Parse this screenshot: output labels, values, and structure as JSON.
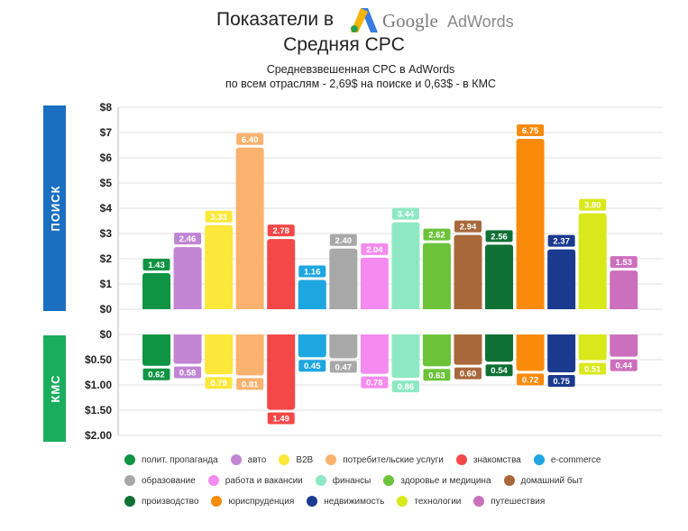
{
  "header": {
    "title_prefix": "Показатели в",
    "google": "Google",
    "adwords": "AdWords",
    "subtitle": "Средняя CPC",
    "desc_line1": "Средневзвешенная CPC в AdWords",
    "desc_line2": "по всем отраслям - 2,69$ на поиске и 0,63$ - в КМС"
  },
  "chart_data": {
    "type": "bar",
    "panels": {
      "search_label": "ПОИСК",
      "display_label": "КМС",
      "search_color": "#1a6fc0",
      "display_color": "#1bad5e"
    },
    "y_ticks_search": [
      "$8",
      "$7",
      "$6",
      "$5",
      "$4",
      "$3",
      "$2",
      "$1",
      "$0"
    ],
    "y_ticks_display": [
      "$0",
      "$0.50",
      "$1.00",
      "$1.50",
      "$2.00"
    ],
    "ylim_search": [
      0,
      8
    ],
    "ylim_display": [
      0,
      2
    ],
    "grid": true,
    "categories": [
      "полит. пропаганда",
      "авто",
      "B2B",
      "потребительские услуги",
      "знакомства",
      "e-commerce",
      "образование",
      "работа и вакансии",
      "финансы",
      "здоровье и медицина",
      "домашний быт",
      "производство",
      "юриспруденция",
      "недвижимость",
      "технологии",
      "путешествия"
    ],
    "colors": [
      "#0f9444",
      "#c185d4",
      "#fbe83a",
      "#fbb26e",
      "#f44747",
      "#1da6df",
      "#a8a8a8",
      "#f58af0",
      "#8fe8c4",
      "#6cc33a",
      "#a8683a",
      "#0f7035",
      "#f98a0a",
      "#1a3a8f",
      "#d8e81b",
      "#cc6fbd"
    ],
    "series": [
      {
        "values": [
          1.43,
          2.46,
          3.33,
          6.4,
          2.78,
          1.16,
          2.4,
          2.04,
          3.44,
          2.62,
          2.94,
          2.56,
          6.75,
          2.37,
          3.8,
          1.53
        ],
        "labels": [
          "1.43",
          "2.46",
          "3.33",
          "6.40",
          "2.78",
          "1.16",
          "2.40",
          "2.04",
          "3.44",
          "2.62",
          "2.94",
          "2.56",
          "6.75",
          "2.37",
          "3.80",
          "1.53"
        ]
      },
      {
        "values": [
          0.62,
          0.58,
          0.79,
          0.81,
          1.49,
          0.45,
          0.47,
          0.78,
          0.86,
          0.63,
          0.6,
          0.54,
          0.72,
          0.75,
          0.51,
          0.44
        ],
        "labels": [
          "0.62",
          "0.58",
          "0.79",
          "0.81",
          "1.49",
          "0.45",
          "0.47",
          "0.78",
          "0.86",
          "0.63",
          "0.60",
          "0.54",
          "0.72",
          "0.75",
          "0.51",
          "0.44"
        ]
      }
    ],
    "legend_position": "bottom"
  },
  "legend": [
    [
      "полит. пропаганда",
      "авто",
      "B2B",
      "потребительские услуги",
      "знакомства",
      "e-commerce"
    ],
    [
      "образование",
      "работа и вакансии",
      "финансы",
      "здоровье и медицина",
      "домашний быт"
    ],
    [
      "производство",
      "юриспруденция",
      "недвижимость",
      "технологии",
      "путешествия"
    ]
  ]
}
